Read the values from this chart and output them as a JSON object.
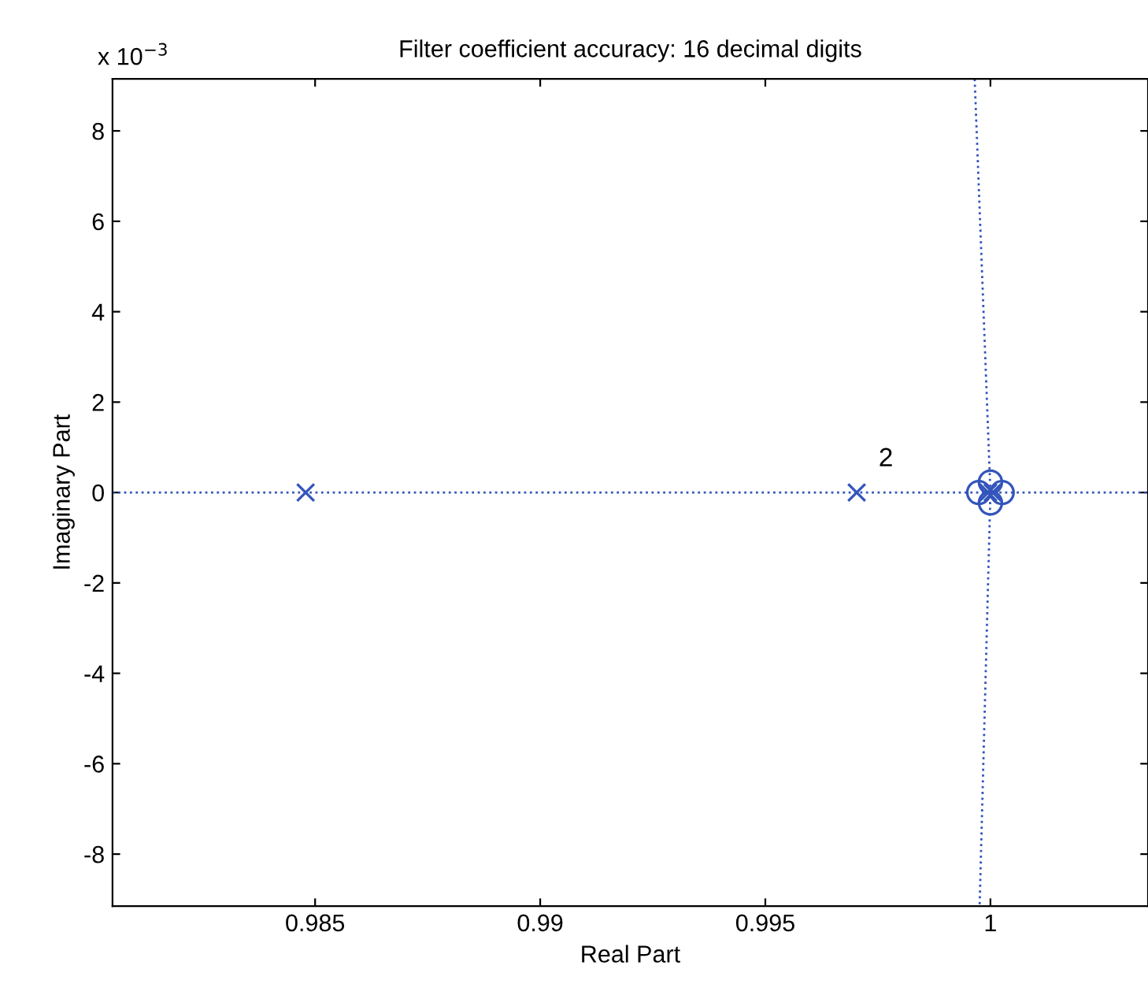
{
  "chart_data": {
    "type": "scatter",
    "title": "Filter coefficient accuracy: 16 decimal digits",
    "xlabel": "Real Part",
    "ylabel": "Imaginary Part",
    "xlim": [
      0.9805,
      1.0035
    ],
    "ylim": [
      -9.15,
      9.15
    ],
    "xticks": [
      0.985,
      0.99,
      0.995,
      1
    ],
    "yticks": [
      -8,
      -6,
      -4,
      -2,
      0,
      2,
      4,
      6,
      8
    ],
    "grid": false,
    "series": [
      {
        "marker": "cross",
        "color": "#3355bb",
        "x": [
          0.98479,
          0.99703,
          0.99995,
          1.00005
        ],
        "values": [
          0,
          0,
          0,
          0
        ]
      },
      {
        "marker": "circle",
        "color": "#3355bb",
        "x": [
          0.99974,
          1.00026,
          1,
          1
        ],
        "values": [
          0,
          0,
          0.23,
          -0.23
        ]
      },
      {
        "type": "line",
        "line_style": "dotted",
        "color": "#3355bb",
        "x": [
          0.99965,
          1,
          0.99976
        ],
        "values": [
          9.15,
          0,
          -9.15
        ]
      }
    ],
    "ref_lines": [
      {
        "axis": "y",
        "value": 0,
        "label": null,
        "color": "#3355bb",
        "line_style": "dotted"
      }
    ],
    "annotations": [
      {
        "text": "2",
        "x": 0.99703,
        "y": 0
      },
      "x 10$^{−3}$"
    ]
  }
}
